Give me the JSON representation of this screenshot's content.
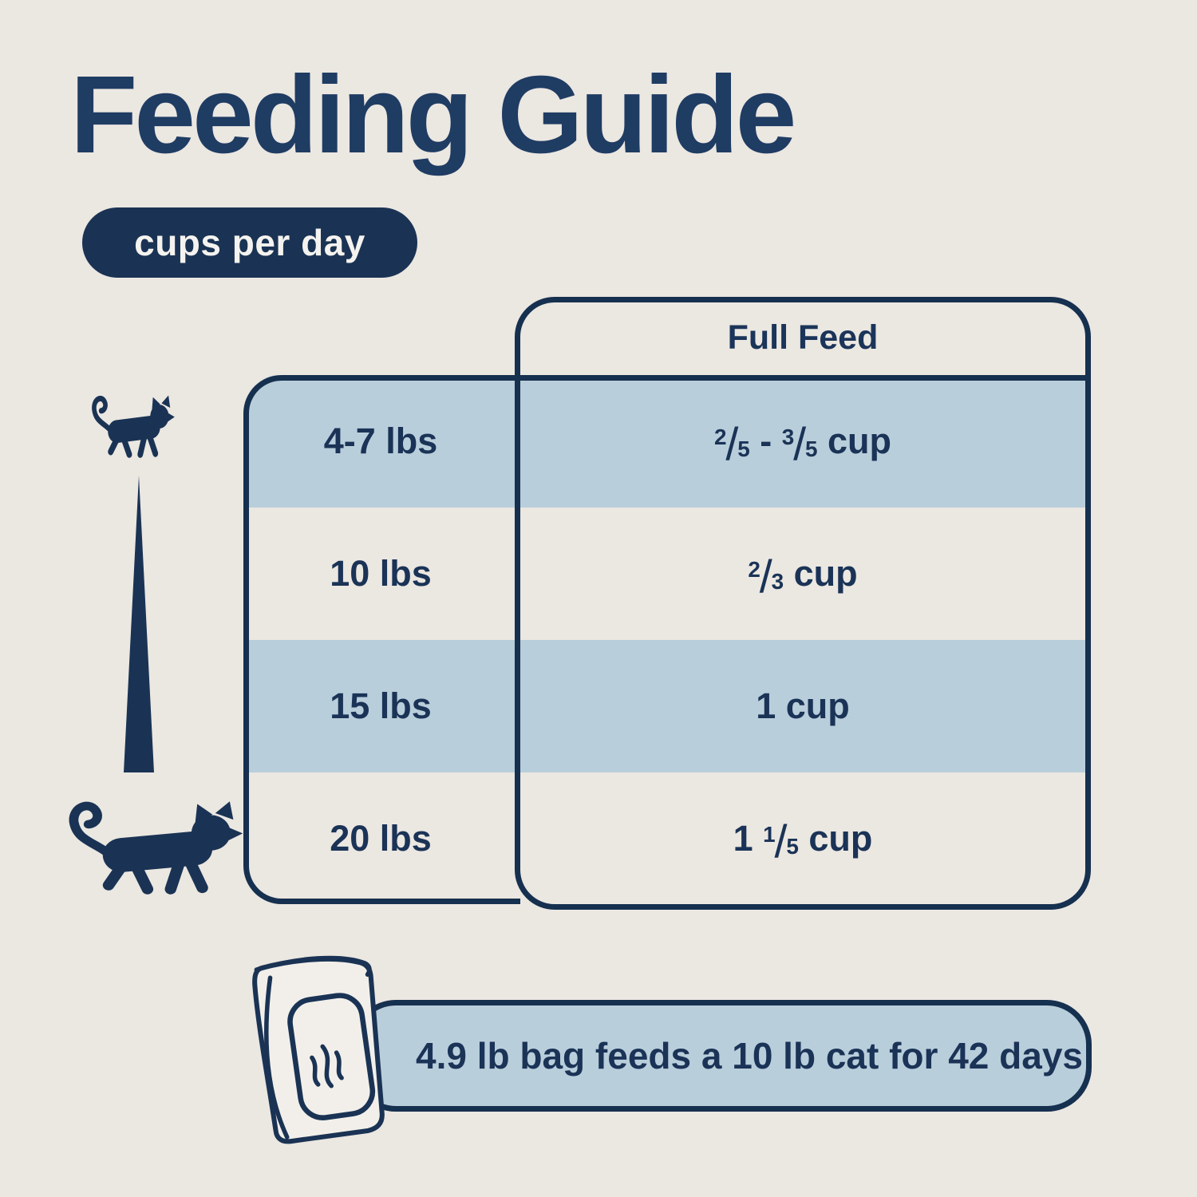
{
  "page": {
    "background_color": "#ebe7e1",
    "navy_color": "#1a3354",
    "light_blue_color": "#b9cedb"
  },
  "header": {
    "title": "Feeding Guide",
    "unit_badge": "cups per day"
  },
  "table": {
    "column_header": "Full Feed",
    "rows": [
      {
        "weight": "4-7 lbs",
        "shaded": true,
        "feed": [
          {
            "frac": [
              "2",
              "5"
            ]
          },
          {
            "text": " - "
          },
          {
            "frac": [
              "3",
              "5"
            ]
          },
          {
            "text": " cup"
          }
        ]
      },
      {
        "weight": "10 lbs",
        "shaded": false,
        "feed": [
          {
            "frac": [
              "2",
              "3"
            ]
          },
          {
            "text": " cup"
          }
        ]
      },
      {
        "weight": "15 lbs",
        "shaded": true,
        "feed": [
          {
            "text": "1 cup"
          }
        ]
      },
      {
        "weight": "20 lbs",
        "shaded": false,
        "feed": [
          {
            "text": "1 "
          },
          {
            "frac": [
              "1",
              "5"
            ]
          },
          {
            "text": " cup"
          }
        ]
      }
    ]
  },
  "footer": {
    "note": "4.9 lb bag feeds a 10 lb cat for 42 days"
  },
  "icons": {
    "small_cat": "small-cat-icon",
    "large_cat": "large-cat-icon",
    "size_scale": "size-scale-triangle",
    "bag": "food-bag-icon"
  }
}
